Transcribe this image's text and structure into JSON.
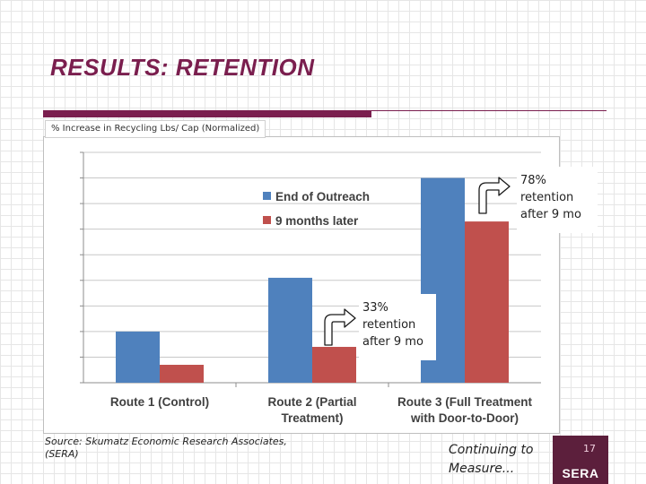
{
  "slide": {
    "title": "RESULTS: RETENTION",
    "source_line1": "Source:  Skumatz Economic Research Associates,",
    "source_line2": "(SERA)",
    "continuing_line1": "Continuing to",
    "continuing_line2": "Measure...",
    "page_number": "17",
    "brand": "SERA"
  },
  "callouts": [
    {
      "lines": [
        "78%",
        "retention",
        "after 9 mo"
      ],
      "icon": "bent-arrow-up-right-icon"
    },
    {
      "lines": [
        "33%",
        "retention",
        "after 9 mo"
      ],
      "icon": "bent-arrow-up-right-icon"
    }
  ],
  "colors": {
    "series_end_of_outreach": "#4f81bd",
    "series_9_months_later": "#c0504d",
    "title": "#7a1e4e"
  },
  "chart_data": {
    "type": "bar",
    "title": "",
    "ylabel": "% Increase in Recycling Lbs/ Cap (Normalized)",
    "xlabel": "",
    "categories": [
      [
        "Route 1 (Control)"
      ],
      [
        "Route 2 (Partial",
        "Treatment)"
      ],
      [
        "Route 3 (Full Treatment",
        "with Door-to-Door)"
      ]
    ],
    "series": [
      {
        "name": "End of Outreach",
        "values": [
          20,
          41,
          80
        ]
      },
      {
        "name": "9 months later",
        "values": [
          7,
          14,
          63
        ]
      }
    ],
    "ylim": [
      0,
      90
    ],
    "grid": true,
    "legend": "top-center"
  }
}
